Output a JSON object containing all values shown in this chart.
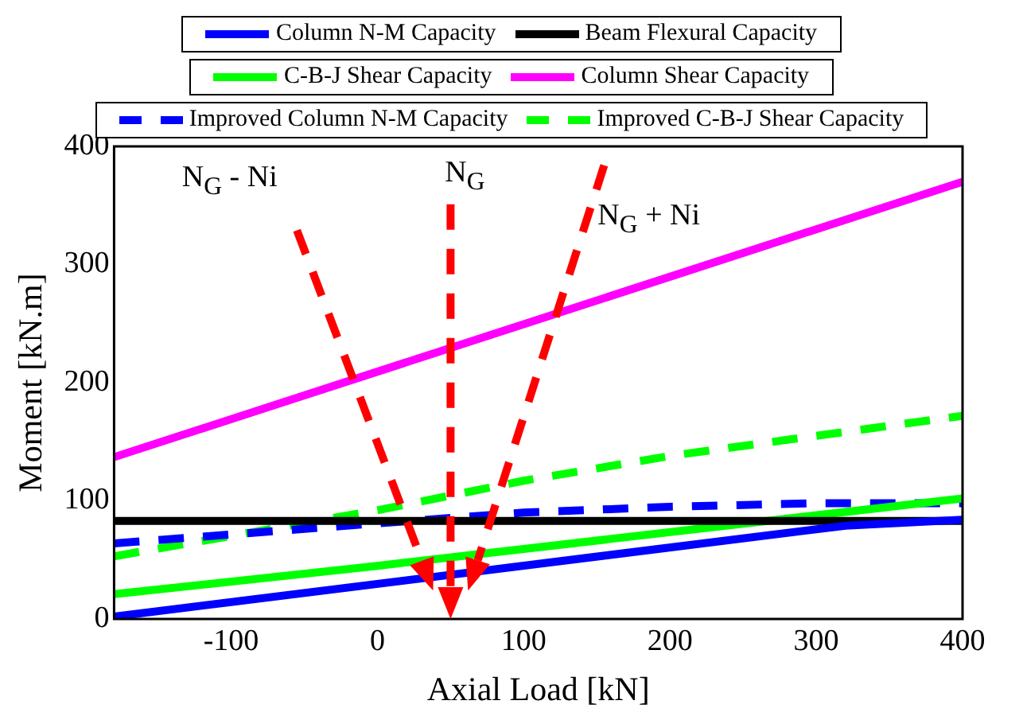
{
  "chart_data": {
    "type": "line",
    "xlabel": "Axial Load [kN]",
    "ylabel": "Moment [kN.m]",
    "xlim": [
      -180,
      400
    ],
    "xticks": [
      -100,
      0,
      100,
      200,
      300,
      400
    ],
    "ylim": [
      0,
      400
    ],
    "yticks": [
      0,
      100,
      200,
      300,
      400
    ],
    "grid": false,
    "legend": "top",
    "marker": "none",
    "series": [
      {
        "name": "Column N-M Capacity",
        "color": "#0000ff",
        "line_style": "solid",
        "x": [
          -180,
          320,
          400
        ],
        "values": [
          2,
          79,
          84
        ]
      },
      {
        "name": "Beam Flexural Capacity",
        "color": "#000000",
        "line_style": "solid",
        "x": [
          -180,
          400
        ],
        "values": [
          83,
          83
        ]
      },
      {
        "name": "C-B-J Shear Capacity",
        "color": "#00ff00",
        "line_style": "solid",
        "x": [
          -180,
          0,
          400
        ],
        "values": [
          21,
          45,
          102
        ]
      },
      {
        "name": "Column Shear Capacity",
        "color": "#ff00ff",
        "line_style": "solid",
        "x": [
          -180,
          400
        ],
        "values": [
          137,
          370
        ]
      },
      {
        "name": "Improved Column N-M Capacity",
        "color": "#0000ff",
        "line_style": "dashed",
        "x": [
          -180,
          0,
          100,
          200,
          300,
          400
        ],
        "values": [
          64,
          81,
          90,
          95,
          98,
          98
        ]
      },
      {
        "name": "Improved C-B-J Shear Capacity",
        "color": "#00ff00",
        "line_style": "dashed",
        "x": [
          -180,
          0,
          100,
          200,
          300,
          400
        ],
        "values": [
          53,
          92,
          117,
          138,
          155,
          172
        ]
      }
    ],
    "annotations": [
      "N$_{G}$ - Ni",
      "N$_{G}$",
      "N$_{G}$ + Ni"
    ]
  }
}
